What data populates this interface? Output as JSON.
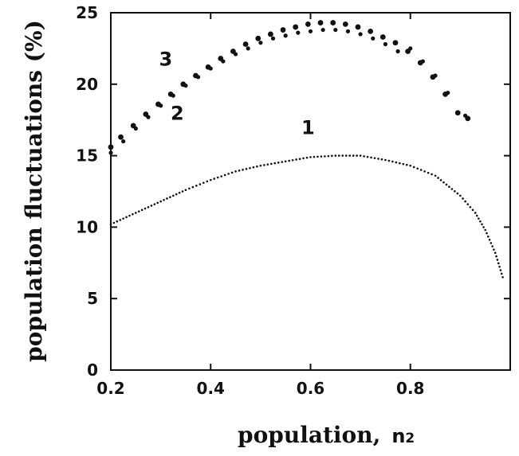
{
  "chart_data": {
    "type": "scatter",
    "title": "",
    "xlabel": "population,",
    "xlabel_symbol": "n",
    "xlabel_subscript": "2",
    "ylabel": "population fluctuations (%)",
    "xlim": [
      0.2,
      1.0
    ],
    "ylim": [
      0,
      25
    ],
    "x_ticks": [
      0.2,
      0.4,
      0.6,
      0.8
    ],
    "x_tick_labels": [
      "0.2",
      "0.4",
      "0.6",
      "0.8"
    ],
    "y_ticks": [
      0,
      5,
      10,
      15,
      20,
      25
    ],
    "y_tick_labels": [
      "0",
      "5",
      "10",
      "15",
      "20",
      "25"
    ],
    "grid": false,
    "legend": "none",
    "series": [
      {
        "label": "1",
        "label_pos": [
          0.595,
          16.5
        ],
        "style": "dotted",
        "x": [
          0.2,
          0.25,
          0.3,
          0.35,
          0.4,
          0.45,
          0.5,
          0.55,
          0.6,
          0.65,
          0.7,
          0.75,
          0.8,
          0.85,
          0.9,
          0.93,
          0.95,
          0.97,
          0.985
        ],
        "y": [
          10.2,
          11.0,
          11.8,
          12.6,
          13.3,
          13.9,
          14.3,
          14.6,
          14.9,
          15.0,
          15.0,
          14.7,
          14.3,
          13.6,
          12.2,
          11.0,
          9.8,
          8.2,
          6.5
        ]
      },
      {
        "label": "2",
        "label_pos": [
          0.333,
          17.5
        ],
        "style": "small-markers",
        "x": [
          0.2,
          0.225,
          0.25,
          0.275,
          0.3,
          0.325,
          0.35,
          0.375,
          0.4,
          0.425,
          0.45,
          0.475,
          0.5,
          0.525,
          0.55,
          0.575,
          0.6,
          0.625,
          0.65,
          0.675,
          0.7,
          0.725,
          0.75,
          0.775,
          0.8,
          0.825,
          0.85,
          0.875,
          0.91
        ],
        "y": [
          15.2,
          16.0,
          16.9,
          17.7,
          18.5,
          19.2,
          19.9,
          20.5,
          21.1,
          21.6,
          22.1,
          22.5,
          22.9,
          23.2,
          23.4,
          23.6,
          23.7,
          23.8,
          23.8,
          23.7,
          23.5,
          23.2,
          22.8,
          22.3,
          22.5,
          21.6,
          20.6,
          19.4,
          17.8
        ]
      },
      {
        "label": "3",
        "label_pos": [
          0.31,
          21.3
        ],
        "style": "large-markers",
        "x": [
          0.2,
          0.22,
          0.245,
          0.27,
          0.295,
          0.32,
          0.345,
          0.37,
          0.395,
          0.42,
          0.445,
          0.47,
          0.495,
          0.52,
          0.545,
          0.57,
          0.595,
          0.62,
          0.645,
          0.67,
          0.695,
          0.72,
          0.745,
          0.77,
          0.795,
          0.82,
          0.845,
          0.87,
          0.895,
          0.915
        ],
        "y": [
          15.6,
          16.3,
          17.1,
          17.9,
          18.6,
          19.3,
          20.0,
          20.6,
          21.2,
          21.8,
          22.3,
          22.8,
          23.2,
          23.5,
          23.8,
          24.0,
          24.2,
          24.3,
          24.3,
          24.2,
          24.0,
          23.7,
          23.3,
          22.9,
          22.3,
          21.5,
          20.5,
          19.3,
          18.0,
          17.6
        ]
      }
    ]
  }
}
